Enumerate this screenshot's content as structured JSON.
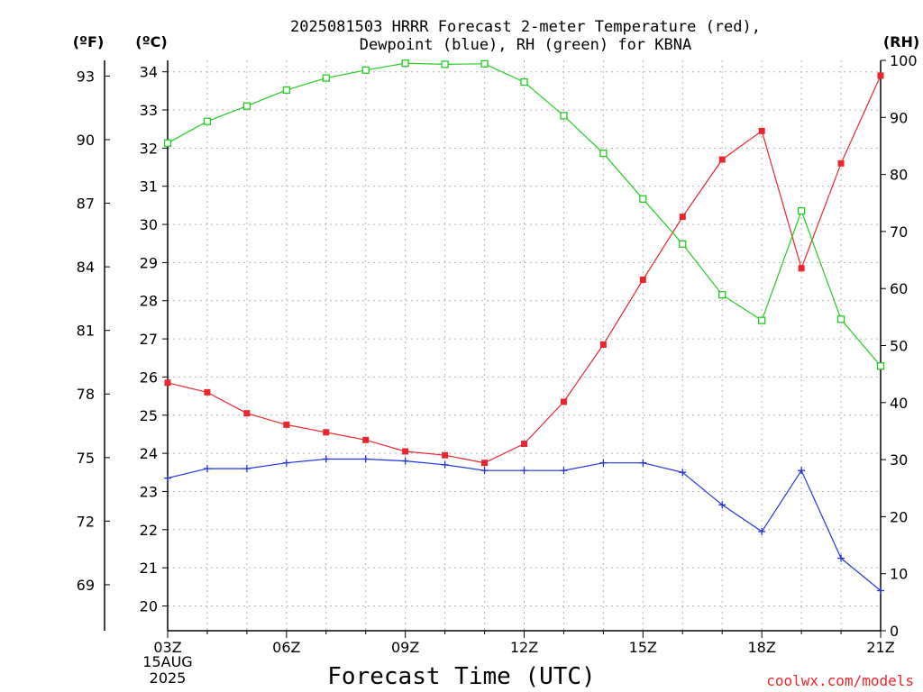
{
  "title_line1": "2025081503 HRRR Forecast 2-meter Temperature (red),",
  "title_line2": "Dewpoint (blue), RH (green) for KBNA",
  "credit": "coolwx.com/models",
  "date_label_line1": "15AUG",
  "date_label_line2": "2025",
  "colors": {
    "temperature": "#e8262d",
    "dewpoint": "#2233dd",
    "rh": "#22cc22",
    "axis": "#000000",
    "grid": "#b4b4b4"
  },
  "chart_data": {
    "type": "line",
    "title": "2025081503 HRRR Forecast 2-meter Temperature (red), Dewpoint (blue), RH (green) for KBNA",
    "xlabel": "Forecast Time (UTC)",
    "x": [
      "03Z",
      "04Z",
      "05Z",
      "06Z",
      "07Z",
      "08Z",
      "09Z",
      "10Z",
      "11Z",
      "12Z",
      "13Z",
      "14Z",
      "15Z",
      "16Z",
      "17Z",
      "18Z",
      "19Z",
      "20Z",
      "21Z"
    ],
    "x_tick_labels": [
      "03Z",
      "06Z",
      "09Z",
      "12Z",
      "15Z",
      "18Z",
      "21Z"
    ],
    "axes": {
      "fahrenheit": {
        "label": "(ºF)",
        "ticks": [
          "93",
          "90",
          "87",
          "84",
          "81",
          "78",
          "75",
          "72",
          "69"
        ]
      },
      "celsius": {
        "label": "(ºC)",
        "ylim": [
          19.35,
          34.3
        ],
        "ticks": [
          "34",
          "33",
          "32",
          "31",
          "30",
          "29",
          "28",
          "27",
          "26",
          "25",
          "24",
          "23",
          "22",
          "21",
          "20"
        ]
      },
      "rh": {
        "label": "(RH)",
        "ylim": [
          0,
          100
        ],
        "ticks": [
          "100",
          "90",
          "80",
          "70",
          "60",
          "50",
          "40",
          "30",
          "20",
          "10",
          "0"
        ]
      }
    },
    "grid": true,
    "series": [
      {
        "key": "temperature",
        "axis": "celsius",
        "marker": "filled-square",
        "values": [
          25.85,
          25.6,
          25.05,
          24.75,
          24.55,
          24.35,
          24.05,
          23.95,
          23.75,
          24.25,
          25.35,
          26.85,
          28.55,
          30.2,
          31.7,
          32.45,
          28.85,
          31.6,
          33.9
        ]
      },
      {
        "key": "dewpoint",
        "axis": "celsius",
        "marker": "plus",
        "values": [
          23.35,
          23.6,
          23.6,
          23.75,
          23.85,
          23.85,
          23.8,
          23.7,
          23.55,
          23.55,
          23.55,
          23.75,
          23.75,
          23.5,
          22.65,
          21.95,
          23.55,
          21.25,
          20.4
        ]
      },
      {
        "key": "rh",
        "axis": "rh",
        "marker": "hollow-square",
        "values": [
          85.5,
          89.3,
          92.0,
          94.8,
          96.9,
          98.3,
          99.5,
          99.3,
          99.4,
          96.2,
          90.3,
          83.7,
          75.7,
          67.8,
          58.9,
          54.4,
          73.6,
          54.6,
          46.4
        ]
      }
    ]
  }
}
